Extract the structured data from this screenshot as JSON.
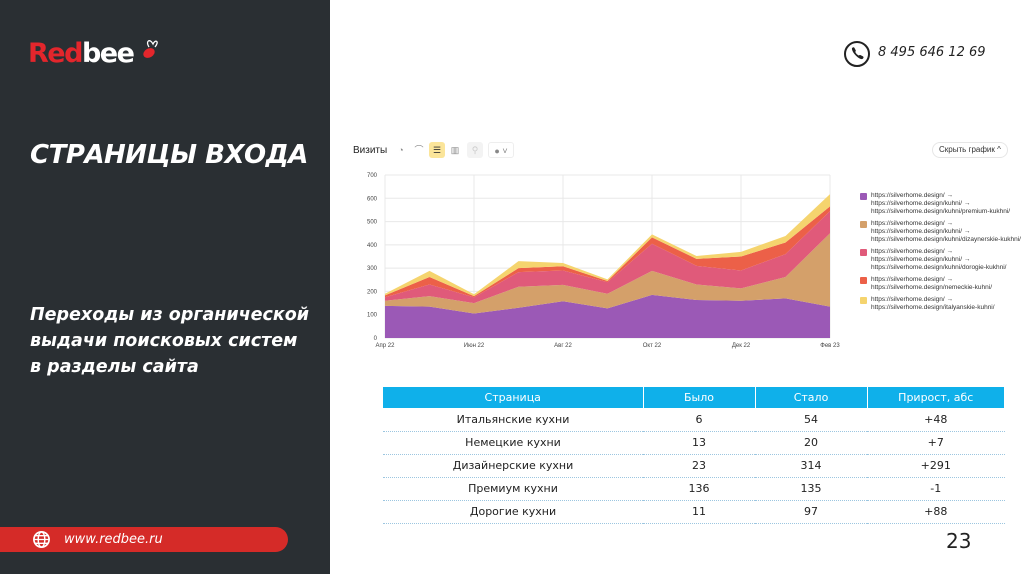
{
  "brand": {
    "logo_red": "Red",
    "logo_white": "bee",
    "website": "www.redbee.ru"
  },
  "slide": {
    "title": "СТРАНИЦЫ ВХОДА",
    "subtitle": "Переходы из органической выдачи поисковых систем в разделы сайта",
    "phone": "8 495 646 12 69",
    "page_number": "23"
  },
  "chart_panel": {
    "metric_label": "Визиты",
    "hide_chart_label": "Скрыть график ^"
  },
  "chart_data": {
    "type": "area",
    "stacked": true,
    "x": [
      "Апр 22",
      "Май 22",
      "Июн 22",
      "Июл 22",
      "Авг 22",
      "Сен 22",
      "Окт 22",
      "Ноя 22",
      "Дек 22",
      "Янв 23",
      "Фев 23"
    ],
    "x_tick_labels": [
      "Апр 22",
      "Июн 22",
      "Авг 22",
      "Окт 22",
      "Дек 22",
      "Фев 23"
    ],
    "y_ticks": [
      "0",
      "100",
      "200",
      "300",
      "400",
      "500",
      "600",
      "700"
    ],
    "ylim": [
      0,
      700
    ],
    "grid": true,
    "legend_position": "right",
    "series": [
      {
        "name": "https://silverhome.design/ → https://silverhome.design/kuhni/ → https://silverhome.design/kuhni/premium-kukhni/",
        "color": "#9b59b6",
        "values": [
          138,
          135,
          105,
          130,
          158,
          127,
          185,
          163,
          160,
          170,
          135
        ]
      },
      {
        "name": "https://silverhome.design/ → https://silverhome.design/kuhni/ → https://silverhome.design/kuhni/dizaynerskie-kukhni/",
        "color": "#d4a06a",
        "values": [
          22,
          45,
          45,
          90,
          70,
          63,
          103,
          67,
          53,
          92,
          315
        ]
      },
      {
        "name": "https://silverhome.design/ → https://silverhome.design/kuhni/ → https://silverhome.design/kuhni/dorogie-kukhni/",
        "color": "#e05a7a",
        "values": [
          15,
          50,
          25,
          63,
          62,
          50,
          117,
          80,
          77,
          98,
          95
        ]
      },
      {
        "name": "https://silverhome.design/ → https://silverhome.design/nemeckie-kuhni/",
        "color": "#ec6048",
        "values": [
          8,
          32,
          5,
          17,
          18,
          5,
          27,
          30,
          60,
          50,
          20
        ]
      },
      {
        "name": "https://silverhome.design/ → https://silverhome.design/italyanskie-kuhni/",
        "color": "#f5d46e",
        "values": [
          7,
          26,
          8,
          30,
          14,
          7,
          13,
          12,
          20,
          28,
          53
        ]
      }
    ]
  },
  "table": {
    "headers": [
      "Страница",
      "Было",
      "Стало",
      "Прирост, абс"
    ],
    "rows": [
      [
        "Итальянские кухни",
        "6",
        "54",
        "+48"
      ],
      [
        "Немецкие кухни",
        "13",
        "20",
        "+7"
      ],
      [
        "Дизайнерские кухни",
        "23",
        "314",
        "+291"
      ],
      [
        "Премиум кухни",
        "136",
        "135",
        "-1"
      ],
      [
        "Дорогие кухни",
        "11",
        "97",
        "+88"
      ]
    ]
  }
}
